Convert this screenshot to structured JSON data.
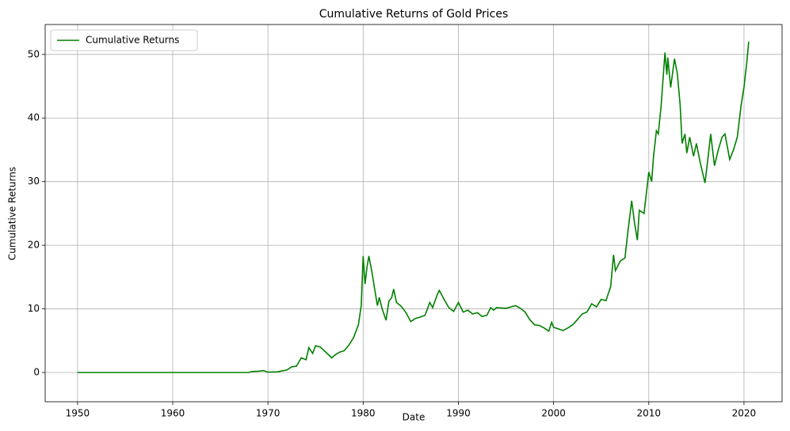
{
  "chart_data": {
    "type": "line",
    "title": "Cumulative Returns of Gold Prices",
    "x_label": "Date",
    "y_label": "Cumulative Returns",
    "x": [
      1950,
      1968,
      1968.3,
      1969,
      1969.5,
      1970,
      1971,
      1972,
      1972.5,
      1973,
      1973.5,
      1974,
      1974.3,
      1974.7,
      1975,
      1975.5,
      1976,
      1976.7,
      1977,
      1977.5,
      1978,
      1978.5,
      1979,
      1979.5,
      1979.8,
      1980,
      1980.2,
      1980.4,
      1980.6,
      1980.9,
      1981.2,
      1981.5,
      1981.7,
      1982,
      1982.4,
      1982.7,
      1983,
      1983.2,
      1983.5,
      1984,
      1984.5,
      1985,
      1985.5,
      1986,
      1986.5,
      1987,
      1987.3,
      1987.8,
      1988,
      1988.5,
      1989,
      1989.5,
      1990,
      1990.5,
      1991,
      1991.5,
      1992,
      1992.5,
      1993,
      1993.4,
      1993.7,
      1994,
      1995,
      1996,
      1996.5,
      1997,
      1997.5,
      1998,
      1998.5,
      1999,
      1999.5,
      1999.8,
      2000,
      2001,
      2001.5,
      2002,
      2002.5,
      2003,
      2003.5,
      2004,
      2004.5,
      2005,
      2005.5,
      2006,
      2006.3,
      2006.5,
      2007,
      2007.5,
      2007.8,
      2008.2,
      2008.5,
      2008.8,
      2009,
      2009.5,
      2010,
      2010.3,
      2010.5,
      2010.8,
      2011,
      2011.3,
      2011.7,
      2011.9,
      2012,
      2012.3,
      2012.7,
      2013,
      2013.3,
      2013.5,
      2013.8,
      2014,
      2014.3,
      2014.7,
      2015,
      2015.4,
      2015.9,
      2016.2,
      2016.5,
      2016.9,
      2017.3,
      2017.7,
      2018,
      2018.5,
      2018.9,
      2019.3,
      2019.7,
      2020,
      2020.3,
      2020.5
    ],
    "series": [
      {
        "name": "Cumulative Returns",
        "color": "#008000",
        "values": [
          0,
          0,
          0.15,
          0.2,
          0.3,
          0.05,
          0.1,
          0.4,
          0.9,
          1.0,
          2.3,
          2.0,
          3.9,
          3.0,
          4.2,
          4.0,
          3.3,
          2.3,
          2.7,
          3.2,
          3.4,
          4.3,
          5.5,
          7.5,
          10.5,
          18.3,
          13.9,
          16.5,
          18.3,
          16.0,
          13.2,
          10.5,
          11.8,
          10.0,
          8.2,
          11.2,
          11.8,
          13.1,
          11.0,
          10.4,
          9.4,
          8.0,
          8.5,
          8.7,
          9.0,
          11.0,
          10.2,
          12.3,
          12.9,
          11.5,
          10.2,
          9.6,
          11.0,
          9.5,
          9.8,
          9.2,
          9.4,
          8.8,
          9.0,
          10.2,
          9.8,
          10.2,
          10.1,
          10.5,
          10.1,
          9.5,
          8.3,
          7.5,
          7.4,
          7.0,
          6.5,
          7.9,
          7.1,
          6.6,
          7.0,
          7.5,
          8.3,
          9.2,
          9.5,
          10.8,
          10.3,
          11.5,
          11.3,
          13.5,
          18.5,
          16.0,
          17.5,
          18.0,
          22.0,
          27.0,
          23.5,
          20.8,
          25.5,
          25.0,
          31.5,
          30.0,
          34.0,
          38.0,
          37.5,
          42.0,
          50.3,
          46.8,
          49.5,
          44.8,
          49.3,
          47.0,
          42.0,
          36.0,
          37.5,
          34.5,
          37.0,
          34.0,
          36.0,
          33.0,
          29.8,
          33.5,
          37.5,
          32.5,
          35.0,
          37.0,
          37.5,
          33.5,
          35.0,
          37.0,
          42.0,
          44.8,
          48.8,
          52.0
        ]
      }
    ],
    "xlim": [
      1946.6,
      2024.0
    ],
    "xticks": [
      1950,
      1960,
      1970,
      1980,
      1990,
      2000,
      2010,
      2020
    ],
    "ylim": [
      -4.6,
      54.7
    ],
    "yticks": [
      0,
      10,
      20,
      30,
      40,
      50
    ],
    "grid": true,
    "legend": "upper-left"
  }
}
